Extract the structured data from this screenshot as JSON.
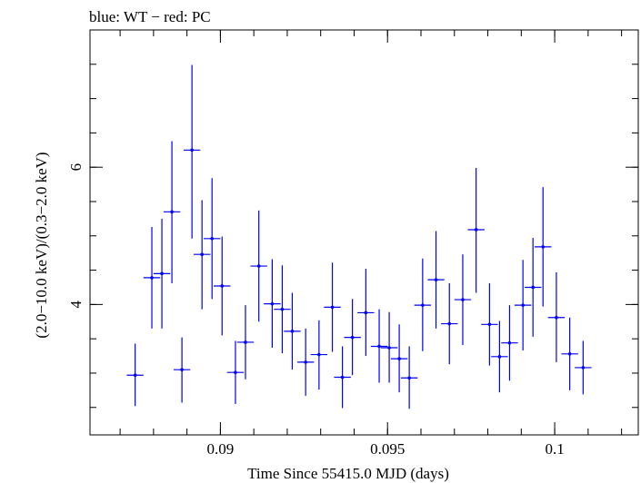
{
  "header": {
    "title": "blue: WT − red: PC"
  },
  "colors": {
    "series": "#0000ff",
    "axes": "#000000",
    "background": "#ffffff"
  },
  "chart_data": {
    "type": "scatter",
    "title": "blue: WT − red: PC",
    "xlabel": "Time Since 55415.0 MJD (days)",
    "ylabel": "(2.0−10.0 keV)/(0.3−2.0 keV)",
    "xlim": [
      0.0861,
      0.1025
    ],
    "ylim": [
      2.1,
      8.0
    ],
    "x_ticks": [
      {
        "value": 0.09,
        "label": "0.09"
      },
      {
        "value": 0.095,
        "label": "0.095"
      },
      {
        "value": 0.1,
        "label": "0.1"
      }
    ],
    "y_ticks": [
      {
        "value": 4,
        "label": "4"
      },
      {
        "value": 6,
        "label": "6"
      }
    ],
    "grid": false,
    "legend": "none",
    "series": [
      {
        "color": "#0000ff",
        "points": [
          {
            "x": 0.08745,
            "xerr": 0.00025,
            "y": 2.97,
            "ylo": 2.52,
            "yhi": 3.43
          },
          {
            "x": 0.08795,
            "xerr": 0.00025,
            "y": 4.39,
            "ylo": 3.65,
            "yhi": 5.13
          },
          {
            "x": 0.08825,
            "xerr": 0.00025,
            "y": 4.45,
            "ylo": 3.65,
            "yhi": 5.25
          },
          {
            "x": 0.08855,
            "xerr": 0.00025,
            "y": 5.35,
            "ylo": 4.31,
            "yhi": 6.38
          },
          {
            "x": 0.08885,
            "xerr": 0.00025,
            "y": 3.05,
            "ylo": 2.57,
            "yhi": 3.52
          },
          {
            "x": 0.08915,
            "xerr": 0.00025,
            "y": 6.25,
            "ylo": 4.96,
            "yhi": 7.49
          },
          {
            "x": 0.08945,
            "xerr": 0.00025,
            "y": 4.73,
            "ylo": 3.93,
            "yhi": 5.52
          },
          {
            "x": 0.08975,
            "xerr": 0.00025,
            "y": 4.96,
            "ylo": 4.08,
            "yhi": 5.84
          },
          {
            "x": 0.09005,
            "xerr": 0.00025,
            "y": 4.27,
            "ylo": 3.55,
            "yhi": 4.99
          },
          {
            "x": 0.09045,
            "xerr": 0.00025,
            "y": 3.01,
            "ylo": 2.55,
            "yhi": 3.47
          },
          {
            "x": 0.09075,
            "xerr": 0.00025,
            "y": 3.45,
            "ylo": 2.91,
            "yhi": 3.99
          },
          {
            "x": 0.09115,
            "xerr": 0.00025,
            "y": 4.56,
            "ylo": 3.75,
            "yhi": 5.37
          },
          {
            "x": 0.09155,
            "xerr": 0.00025,
            "y": 4.01,
            "ylo": 3.37,
            "yhi": 4.66
          },
          {
            "x": 0.09185,
            "xerr": 0.00025,
            "y": 3.93,
            "ylo": 3.29,
            "yhi": 4.57
          },
          {
            "x": 0.09215,
            "xerr": 0.00025,
            "y": 3.61,
            "ylo": 3.05,
            "yhi": 4.17
          },
          {
            "x": 0.09255,
            "xerr": 0.00025,
            "y": 3.16,
            "ylo": 2.67,
            "yhi": 3.65
          },
          {
            "x": 0.09295,
            "xerr": 0.00025,
            "y": 3.27,
            "ylo": 2.76,
            "yhi": 3.77
          },
          {
            "x": 0.09335,
            "xerr": 0.00025,
            "y": 3.96,
            "ylo": 3.31,
            "yhi": 4.61
          },
          {
            "x": 0.09365,
            "xerr": 0.00025,
            "y": 2.94,
            "ylo": 2.49,
            "yhi": 3.39
          },
          {
            "x": 0.09395,
            "xerr": 0.00025,
            "y": 3.52,
            "ylo": 2.97,
            "yhi": 4.08
          },
          {
            "x": 0.09435,
            "xerr": 0.00025,
            "y": 3.88,
            "ylo": 3.25,
            "yhi": 4.52
          },
          {
            "x": 0.09475,
            "xerr": 0.00025,
            "y": 3.39,
            "ylo": 2.86,
            "yhi": 3.93
          },
          {
            "x": 0.09505,
            "xerr": 0.00025,
            "y": 3.37,
            "ylo": 2.86,
            "yhi": 3.89
          },
          {
            "x": 0.09535,
            "xerr": 0.00025,
            "y": 3.21,
            "ylo": 2.72,
            "yhi": 3.71
          },
          {
            "x": 0.09565,
            "xerr": 0.00025,
            "y": 2.93,
            "ylo": 2.48,
            "yhi": 3.39
          },
          {
            "x": 0.09605,
            "xerr": 0.00025,
            "y": 3.99,
            "ylo": 3.32,
            "yhi": 4.67
          },
          {
            "x": 0.09645,
            "xerr": 0.00025,
            "y": 4.36,
            "ylo": 3.65,
            "yhi": 5.07
          },
          {
            "x": 0.09685,
            "xerr": 0.00025,
            "y": 3.72,
            "ylo": 3.13,
            "yhi": 4.31
          },
          {
            "x": 0.09725,
            "xerr": 0.00025,
            "y": 4.07,
            "ylo": 3.41,
            "yhi": 4.73
          },
          {
            "x": 0.09765,
            "xerr": 0.00025,
            "y": 5.09,
            "ylo": 4.17,
            "yhi": 5.99
          },
          {
            "x": 0.09805,
            "xerr": 0.00025,
            "y": 3.71,
            "ylo": 3.11,
            "yhi": 4.31
          },
          {
            "x": 0.09835,
            "xerr": 0.00025,
            "y": 3.24,
            "ylo": 2.72,
            "yhi": 3.76
          },
          {
            "x": 0.09865,
            "xerr": 0.00025,
            "y": 3.44,
            "ylo": 2.89,
            "yhi": 3.99
          },
          {
            "x": 0.09905,
            "xerr": 0.00025,
            "y": 3.99,
            "ylo": 3.33,
            "yhi": 4.65
          },
          {
            "x": 0.09935,
            "xerr": 0.00025,
            "y": 4.25,
            "ylo": 3.53,
            "yhi": 4.97
          },
          {
            "x": 0.09965,
            "xerr": 0.00025,
            "y": 4.84,
            "ylo": 3.97,
            "yhi": 5.71
          },
          {
            "x": 0.10005,
            "xerr": 0.00025,
            "y": 3.81,
            "ylo": 3.16,
            "yhi": 4.47
          },
          {
            "x": 0.10045,
            "xerr": 0.00025,
            "y": 3.28,
            "ylo": 2.75,
            "yhi": 3.81
          },
          {
            "x": 0.10085,
            "xerr": 0.00025,
            "y": 3.08,
            "ylo": 2.69,
            "yhi": 3.47
          }
        ]
      }
    ]
  }
}
